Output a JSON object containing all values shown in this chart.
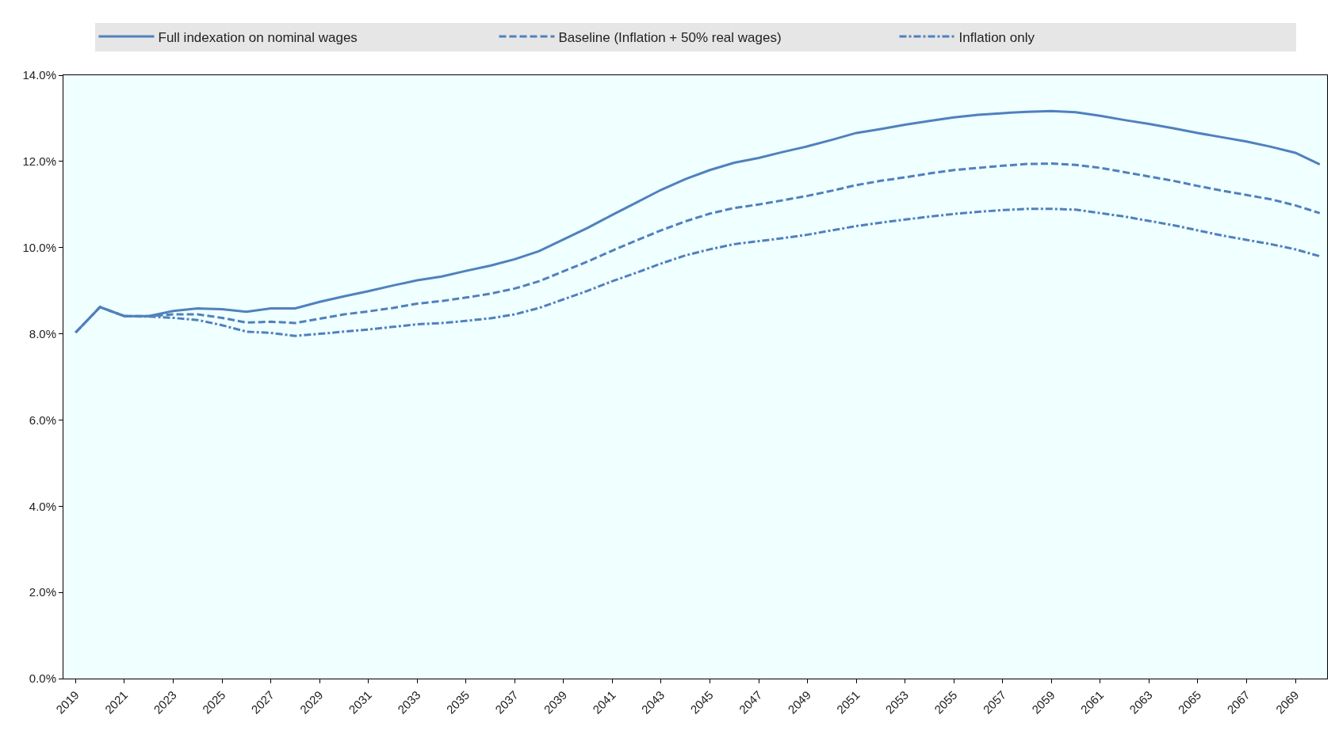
{
  "chart_data": {
    "type": "line",
    "x": [
      2019,
      2020,
      2021,
      2022,
      2023,
      2024,
      2025,
      2026,
      2027,
      2028,
      2029,
      2030,
      2031,
      2032,
      2033,
      2034,
      2035,
      2036,
      2037,
      2038,
      2039,
      2040,
      2041,
      2042,
      2043,
      2044,
      2045,
      2046,
      2047,
      2048,
      2049,
      2050,
      2051,
      2052,
      2053,
      2054,
      2055,
      2056,
      2057,
      2058,
      2059,
      2060,
      2061,
      2062,
      2063,
      2064,
      2065,
      2066,
      2067,
      2068,
      2069,
      2070
    ],
    "series": [
      {
        "name": "Full indexation on nominal wages",
        "color": "#4f81bd",
        "line_style": "solid",
        "values": [
          8.03,
          8.62,
          8.41,
          8.41,
          8.53,
          8.59,
          8.57,
          8.51,
          8.59,
          8.59,
          8.74,
          8.87,
          8.99,
          9.12,
          9.24,
          9.33,
          9.46,
          9.58,
          9.73,
          9.92,
          10.19,
          10.46,
          10.76,
          11.05,
          11.34,
          11.59,
          11.8,
          11.97,
          12.08,
          12.22,
          12.35,
          12.5,
          12.66,
          12.75,
          12.85,
          12.94,
          13.02,
          13.08,
          13.12,
          13.15,
          13.17,
          13.14,
          13.06,
          12.96,
          12.87,
          12.77,
          12.66,
          12.56,
          12.46,
          12.34,
          12.2,
          11.93
        ]
      },
      {
        "name": "Baseline (Inflation + 50% real wages)",
        "color": "#4f81bd",
        "line_style": "dashed",
        "values": [
          8.03,
          8.62,
          8.41,
          8.41,
          8.45,
          8.45,
          8.37,
          8.26,
          8.28,
          8.25,
          8.35,
          8.45,
          8.52,
          8.6,
          8.7,
          8.76,
          8.84,
          8.93,
          9.05,
          9.22,
          9.45,
          9.68,
          9.93,
          10.17,
          10.4,
          10.61,
          10.79,
          10.92,
          11.0,
          11.1,
          11.2,
          11.32,
          11.45,
          11.55,
          11.63,
          11.72,
          11.8,
          11.85,
          11.9,
          11.94,
          11.95,
          11.92,
          11.85,
          11.75,
          11.65,
          11.55,
          11.43,
          11.32,
          11.22,
          11.12,
          10.98,
          10.8
        ]
      },
      {
        "name": "Inflation only",
        "color": "#4f81bd",
        "line_style": "dashdot",
        "values": [
          8.03,
          8.62,
          8.41,
          8.4,
          8.37,
          8.32,
          8.2,
          8.05,
          8.02,
          7.95,
          8.0,
          8.05,
          8.1,
          8.16,
          8.22,
          8.25,
          8.3,
          8.36,
          8.45,
          8.6,
          8.8,
          9.0,
          9.22,
          9.42,
          9.63,
          9.82,
          9.96,
          10.08,
          10.15,
          10.22,
          10.3,
          10.4,
          10.5,
          10.58,
          10.65,
          10.72,
          10.78,
          10.83,
          10.87,
          10.9,
          10.9,
          10.88,
          10.8,
          10.72,
          10.62,
          10.52,
          10.4,
          10.28,
          10.18,
          10.08,
          9.96,
          9.8
        ]
      }
    ],
    "xlim": [
      2018.5,
      2070.3
    ],
    "xticks": [
      2019,
      2021,
      2023,
      2025,
      2027,
      2029,
      2031,
      2033,
      2035,
      2037,
      2039,
      2041,
      2043,
      2045,
      2047,
      2049,
      2051,
      2053,
      2055,
      2057,
      2059,
      2061,
      2063,
      2065,
      2067,
      2069
    ],
    "ylim": [
      0,
      14
    ],
    "yticks": [
      {
        "value": 0,
        "label": "0.0%"
      },
      {
        "value": 2,
        "label": "2.0%"
      },
      {
        "value": 4,
        "label": "4.0%"
      },
      {
        "value": 6,
        "label": "6.0%"
      },
      {
        "value": 8,
        "label": "8.0%"
      },
      {
        "value": 10,
        "label": "10.0%"
      },
      {
        "value": 12,
        "label": "12.0%"
      },
      {
        "value": 14,
        "label": "14.0%"
      }
    ],
    "grid": false,
    "legend": "top",
    "marker": "none"
  }
}
